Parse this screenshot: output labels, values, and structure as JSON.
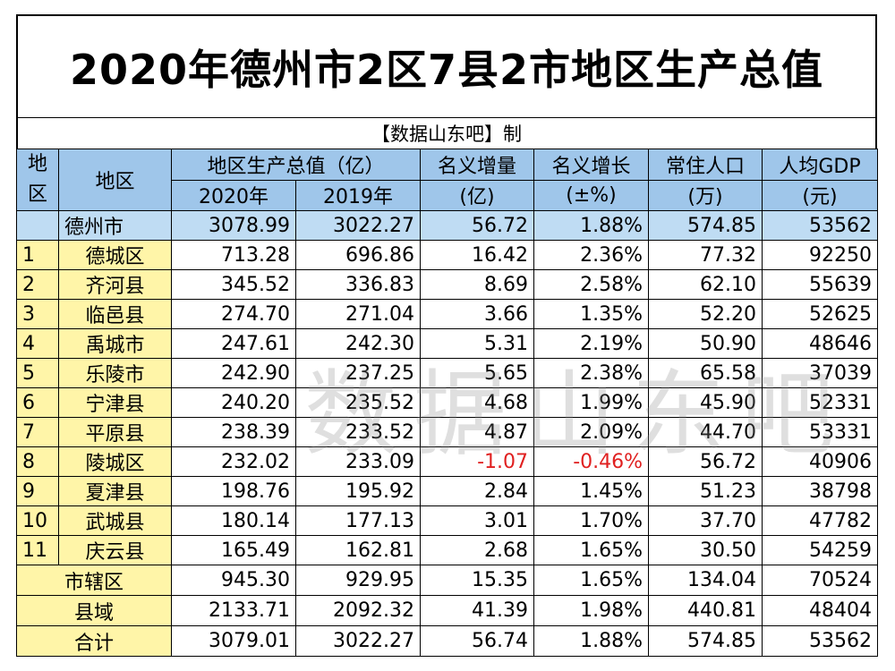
{
  "title": "2020年德州市2区7县2市地区生产总值",
  "credit": "【数据山东吧】制",
  "header": {
    "no": "地区",
    "region": "地区",
    "gdp": "地区生产总值（亿）",
    "y2020": "2020年",
    "y2019": "2019年",
    "inc_amt_1": "名义增量",
    "inc_amt_2": "(亿)",
    "inc_rate_1": "名义增长",
    "inc_rate_2": "(±%)",
    "pop_1": "常住人口",
    "pop_2": "(万)",
    "pc_1": "人均GDP",
    "pc_2": "(元)"
  },
  "city": {
    "name": "德州市",
    "y2020": "3078.99",
    "y2019": "3022.27",
    "inc": "56.72",
    "rate": "1.88%",
    "pop": "574.85",
    "pc": "53562"
  },
  "rows": [
    {
      "no": "1",
      "name": "德城区",
      "y2020": "713.28",
      "y2019": "696.86",
      "inc": "16.42",
      "rate": "2.36%",
      "pop": "77.32",
      "pc": "92250"
    },
    {
      "no": "2",
      "name": "齐河县",
      "y2020": "345.52",
      "y2019": "336.83",
      "inc": "8.69",
      "rate": "2.58%",
      "pop": "62.10",
      "pc": "55639"
    },
    {
      "no": "3",
      "name": "临邑县",
      "y2020": "274.70",
      "y2019": "271.04",
      "inc": "3.66",
      "rate": "1.35%",
      "pop": "52.20",
      "pc": "52625"
    },
    {
      "no": "4",
      "name": "禹城市",
      "y2020": "247.61",
      "y2019": "242.30",
      "inc": "5.31",
      "rate": "2.19%",
      "pop": "50.90",
      "pc": "48646"
    },
    {
      "no": "5",
      "name": "乐陵市",
      "y2020": "242.90",
      "y2019": "237.25",
      "inc": "5.65",
      "rate": "2.38%",
      "pop": "65.58",
      "pc": "37039"
    },
    {
      "no": "6",
      "name": "宁津县",
      "y2020": "240.20",
      "y2019": "235.52",
      "inc": "4.68",
      "rate": "1.99%",
      "pop": "45.90",
      "pc": "52331"
    },
    {
      "no": "7",
      "name": "平原县",
      "y2020": "238.39",
      "y2019": "233.52",
      "inc": "4.87",
      "rate": "2.09%",
      "pop": "44.70",
      "pc": "53331"
    },
    {
      "no": "8",
      "name": "陵城区",
      "y2020": "232.02",
      "y2019": "233.09",
      "inc": "-1.07",
      "rate": "-0.46%",
      "pop": "56.72",
      "pc": "40906"
    },
    {
      "no": "9",
      "name": "夏津县",
      "y2020": "198.76",
      "y2019": "195.92",
      "inc": "2.84",
      "rate": "1.45%",
      "pop": "51.23",
      "pc": "38798"
    },
    {
      "no": "10",
      "name": "武城县",
      "y2020": "180.14",
      "y2019": "177.13",
      "inc": "3.01",
      "rate": "1.70%",
      "pop": "37.70",
      "pc": "47782"
    },
    {
      "no": "11",
      "name": "庆云县",
      "y2020": "165.49",
      "y2019": "162.81",
      "inc": "2.68",
      "rate": "1.65%",
      "pop": "30.50",
      "pc": "54259"
    }
  ],
  "summary": [
    {
      "name": "市辖区",
      "y2020": "945.30",
      "y2019": "929.95",
      "inc": "15.35",
      "rate": "1.65%",
      "pop": "134.04",
      "pc": "70524"
    },
    {
      "name": "县域",
      "y2020": "2133.71",
      "y2019": "2092.32",
      "inc": "41.39",
      "rate": "1.98%",
      "pop": "440.81",
      "pc": "48404"
    },
    {
      "name": "合计",
      "y2020": "3079.01",
      "y2019": "3022.27",
      "inc": "56.74",
      "rate": "1.88%",
      "pop": "574.85",
      "pc": "53562"
    }
  ],
  "watermark": "数据山东吧",
  "colors": {
    "header_blue": "#9fc6ea",
    "city_blue": "#bfdcf3",
    "yellow": "#fff5a8",
    "negative_red": "#e02020"
  }
}
